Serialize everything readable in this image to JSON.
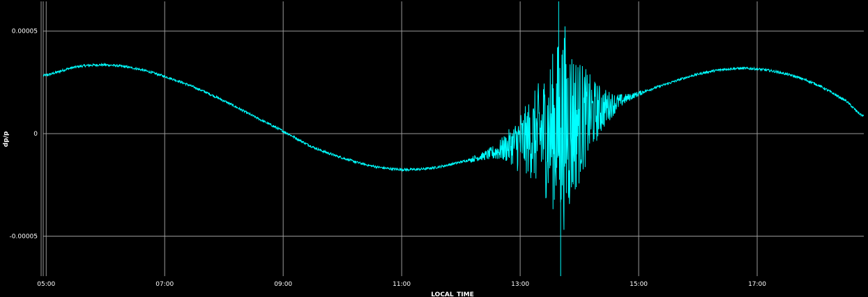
{
  "chart_data": {
    "type": "line",
    "xlabel": "LOCAL_TIME",
    "ylabel": "dp/p",
    "x_unit": "local time (HH:MM)",
    "xlim": [
      "04:57",
      "18:48"
    ],
    "ylim": [
      -6.95e-05,
      6.45e-05
    ],
    "x_ticks": [
      "05:00",
      "07:00",
      "09:00",
      "11:00",
      "13:00",
      "15:00",
      "17:00"
    ],
    "y_ticks": [
      5e-05,
      0,
      -5e-05
    ],
    "y_tick_labels": [
      "0.00005",
      "0",
      "-0.00005"
    ],
    "grid": true,
    "background_color": "#000000",
    "grid_color": "#9a9a9a",
    "text_color": "#ffffff",
    "series": [
      {
        "color": "#00ffff",
        "x": [
          "04:57",
          "05:30",
          "06:00",
          "06:30",
          "07:00",
          "07:30",
          "08:00",
          "08:30",
          "09:00",
          "09:30",
          "10:00",
          "10:30",
          "11:00",
          "11:30",
          "12:00",
          "12:30",
          "13:00",
          "13:30",
          "14:00",
          "14:30",
          "15:00",
          "15:30",
          "16:00",
          "16:30",
          "17:00",
          "17:30",
          "18:00",
          "18:30",
          "18:48"
        ],
        "y": [
          2.83e-05,
          3.25e-05,
          3.35e-05,
          3.18e-05,
          2.79e-05,
          2.26e-05,
          1.6e-05,
          8.5e-06,
          1.2e-06,
          -6.5e-06,
          -1.18e-05,
          -1.58e-05,
          -1.75e-05,
          -1.68e-05,
          -1.38e-05,
          -9.8e-06,
          -4e-06,
          1e-06,
          6.5e-06,
          1.35e-05,
          1.95e-05,
          2.45e-05,
          2.9e-05,
          3.15e-05,
          3.15e-05,
          2.9e-05,
          2.4e-05,
          1.6e-05,
          8.5e-06
        ],
        "disturbance": {
          "start": "12:10",
          "peak": "13:45",
          "end": "15:05",
          "max": 6.45e-05,
          "min": -6.95e-05
        }
      }
    ]
  }
}
